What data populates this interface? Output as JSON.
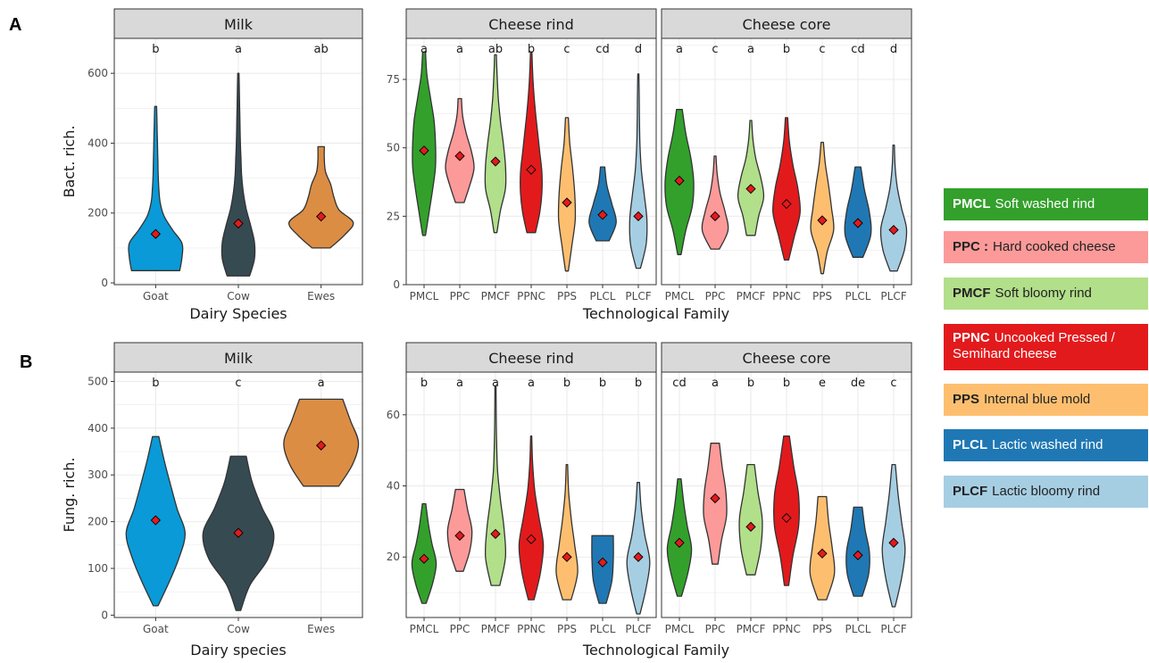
{
  "panel_labels": [
    "A",
    "B"
  ],
  "colors": {
    "Goat": "#0a9ad7",
    "Cow": "#364a52",
    "Ewes": "#dc8d44",
    "PMCL": "#33a02c",
    "PPC": "#fb9a99",
    "PMCF": "#b2df8a",
    "PPNC": "#e31a1c",
    "PPS": "#fdbf6f",
    "PLCL": "#1f78b4",
    "PLCF": "#a6cee3"
  },
  "legend": [
    {
      "code": "PMCL",
      "desc": "Soft washed rind",
      "color": "#33a02c",
      "text_color": "#ffffff"
    },
    {
      "code": "PPC :",
      "desc": "Hard cooked cheese",
      "color": "#fb9a99",
      "text_color": "#222222"
    },
    {
      "code": "PMCF",
      "desc": "Soft bloomy rind",
      "color": "#b2df8a",
      "text_color": "#222222"
    },
    {
      "code": "PPNC",
      "desc": "Uncooked Pressed / Semihard cheese",
      "color": "#e31a1c",
      "text_color": "#ffffff"
    },
    {
      "code": "PPS",
      "desc": "Internal blue mold",
      "color": "#fdbf6f",
      "text_color": "#222222"
    },
    {
      "code": "PLCL",
      "desc": " Lactic washed rind",
      "color": "#1f78b4",
      "text_color": "#ffffff"
    },
    {
      "code": "PLCF",
      "desc": " Lactic bloomy rind",
      "color": "#a6cee3",
      "text_color": "#222222"
    }
  ],
  "chart_data": [
    {
      "type": "violin",
      "row": "A",
      "panel": "Milk",
      "ylabel": "Bact. rich.",
      "xlabel": "Dairy Species",
      "ylim": [
        -5,
        700
      ],
      "yticks": [
        0,
        200,
        400,
        600
      ],
      "grid": true,
      "groups": [
        {
          "name": "Goat",
          "min": 35,
          "max": 505,
          "mean": 140,
          "letter": "b",
          "widths": [
            0.75,
            0.82,
            0.82,
            0.52,
            0.26,
            0.14,
            0.1,
            0.08,
            0.07,
            0.06,
            0.05,
            0.04,
            0.03
          ]
        },
        {
          "name": "Cow",
          "min": 20,
          "max": 600,
          "mean": 170,
          "letter": "a",
          "widths": [
            0.35,
            0.5,
            0.5,
            0.38,
            0.24,
            0.15,
            0.1,
            0.08,
            0.06,
            0.05,
            0.04,
            0.03,
            0.02
          ]
        },
        {
          "name": "Ewes",
          "min": 100,
          "max": 390,
          "mean": 190,
          "letter": "ab",
          "widths": [
            0.28,
            0.72,
            1.0,
            0.56,
            0.4,
            0.3,
            0.14,
            0.1,
            0.1
          ]
        }
      ]
    },
    {
      "type": "violin",
      "row": "A",
      "panel": "Cheese rind",
      "xlabel": "Technological Family",
      "ylim": [
        0,
        90
      ],
      "yticks": [
        0,
        25,
        50,
        75
      ],
      "grid": true,
      "groups": [
        {
          "name": "PMCL",
          "min": 18,
          "max": 85,
          "mean": 49,
          "letter": "a",
          "widths": [
            0.1,
            0.35,
            0.6,
            0.8,
            0.8,
            0.7,
            0.45,
            0.2,
            0.1
          ]
        },
        {
          "name": "PPC",
          "min": 30,
          "max": 68,
          "mean": 47,
          "letter": "a",
          "widths": [
            0.3,
            0.7,
            1.0,
            0.8,
            0.45,
            0.2,
            0.12
          ]
        },
        {
          "name": "PMCF",
          "min": 19,
          "max": 84,
          "mean": 45,
          "letter": "ab",
          "widths": [
            0.1,
            0.35,
            0.7,
            0.7,
            0.55,
            0.35,
            0.2,
            0.12,
            0.06
          ]
        },
        {
          "name": "PPNC",
          "min": 19,
          "max": 85,
          "mean": 42,
          "letter": "b",
          "widths": [
            0.3,
            0.6,
            0.75,
            0.75,
            0.6,
            0.45,
            0.3,
            0.18,
            0.1,
            0.05
          ]
        },
        {
          "name": "PPS",
          "min": 5,
          "max": 61,
          "mean": 30,
          "letter": "c",
          "widths": [
            0.1,
            0.35,
            0.58,
            0.55,
            0.4,
            0.2,
            0.1
          ]
        },
        {
          "name": "PLCL",
          "min": 16,
          "max": 43,
          "mean": 25.5,
          "letter": "cd",
          "widths": [
            0.45,
            0.95,
            0.65,
            0.3,
            0.15
          ]
        },
        {
          "name": "PLCF",
          "min": 6,
          "max": 77,
          "mean": 25,
          "letter": "d",
          "widths": [
            0.15,
            0.55,
            0.6,
            0.42,
            0.22,
            0.12,
            0.08,
            0.06,
            0.04
          ]
        }
      ]
    },
    {
      "type": "violin",
      "row": "A",
      "panel": "Cheese core",
      "ylim": [
        0,
        90
      ],
      "yticks": [
        0,
        25,
        50,
        75
      ],
      "grid": true,
      "groups": [
        {
          "name": "PMCL",
          "min": 11,
          "max": 64,
          "mean": 38,
          "letter": "a",
          "widths": [
            0.12,
            0.45,
            0.9,
            1.0,
            0.8,
            0.45,
            0.2
          ]
        },
        {
          "name": "PPC",
          "min": 13,
          "max": 47,
          "mean": 25,
          "letter": "c",
          "widths": [
            0.3,
            0.9,
            0.7,
            0.35,
            0.15,
            0.06
          ]
        },
        {
          "name": "PMCF",
          "min": 18,
          "max": 60,
          "mean": 35,
          "letter": "a",
          "widths": [
            0.3,
            0.55,
            0.9,
            0.7,
            0.35,
            0.15,
            0.06
          ]
        },
        {
          "name": "PPNC",
          "min": 9,
          "max": 61,
          "mean": 29.5,
          "letter": "b",
          "widths": [
            0.15,
            0.55,
            0.95,
            0.8,
            0.45,
            0.2,
            0.08
          ]
        },
        {
          "name": "PPS",
          "min": 4,
          "max": 52,
          "mean": 23.5,
          "letter": "c",
          "widths": [
            0.08,
            0.35,
            0.8,
            0.65,
            0.45,
            0.22,
            0.08
          ]
        },
        {
          "name": "PLCL",
          "min": 10,
          "max": 43,
          "mean": 22.5,
          "letter": "cd",
          "widths": [
            0.35,
            0.9,
            0.8,
            0.45,
            0.2
          ]
        },
        {
          "name": "PLCF",
          "min": 5,
          "max": 51,
          "mean": 20,
          "letter": "d",
          "widths": [
            0.25,
            0.75,
            0.9,
            0.55,
            0.25,
            0.1,
            0.05
          ]
        }
      ]
    },
    {
      "type": "violin",
      "row": "B",
      "panel": "Milk",
      "ylabel": "Fung. rich.",
      "xlabel": "Dairy species",
      "ylim": [
        -5,
        520
      ],
      "yticks": [
        0,
        100,
        200,
        300,
        400,
        500
      ],
      "grid": true,
      "groups": [
        {
          "name": "Goat",
          "min": 20,
          "max": 382,
          "mean": 203,
          "letter": "b",
          "widths": [
            0.06,
            0.35,
            0.6,
            0.75,
            0.55,
            0.38,
            0.22,
            0.08
          ]
        },
        {
          "name": "Cow",
          "min": 10,
          "max": 340,
          "mean": 176,
          "letter": "c",
          "widths": [
            0.06,
            0.3,
            0.75,
            0.9,
            0.6,
            0.35,
            0.2
          ]
        },
        {
          "name": "Ewes",
          "min": 276,
          "max": 462,
          "mean": 363,
          "letter": "a",
          "widths": [
            0.45,
            0.8,
            0.95,
            0.75,
            0.55
          ]
        }
      ]
    },
    {
      "type": "violin",
      "row": "B",
      "panel": "Cheese rind",
      "xlabel": "Technological Family",
      "ylim": [
        3,
        72
      ],
      "yticks": [
        20,
        40,
        60
      ],
      "grid": true,
      "groups": [
        {
          "name": "PMCL",
          "min": 7,
          "max": 35,
          "mean": 19.5,
          "letter": "b",
          "widths": [
            0.15,
            0.6,
            0.85,
            0.55,
            0.3,
            0.12
          ]
        },
        {
          "name": "PPC",
          "min": 16,
          "max": 39,
          "mean": 26,
          "letter": "a",
          "widths": [
            0.25,
            0.7,
            0.85,
            0.55,
            0.3
          ]
        },
        {
          "name": "PMCF",
          "min": 12,
          "max": 68,
          "mean": 26.5,
          "letter": "a",
          "widths": [
            0.3,
            0.7,
            0.6,
            0.35,
            0.15,
            0.08,
            0.05,
            0.04
          ]
        },
        {
          "name": "PPNC",
          "min": 8,
          "max": 54,
          "mean": 25,
          "letter": "a",
          "widths": [
            0.2,
            0.65,
            0.85,
            0.55,
            0.25,
            0.1,
            0.04
          ]
        },
        {
          "name": "PPS",
          "min": 8,
          "max": 46,
          "mean": 20,
          "letter": "b",
          "widths": [
            0.3,
            0.75,
            0.55,
            0.3,
            0.12,
            0.05
          ]
        },
        {
          "name": "PLCL",
          "min": 7,
          "max": 26,
          "mean": 18.5,
          "letter": "b",
          "widths": [
            0.25,
            0.65,
            0.75,
            0.75
          ]
        },
        {
          "name": "PLCF",
          "min": 4,
          "max": 41,
          "mean": 20,
          "letter": "b",
          "widths": [
            0.12,
            0.55,
            0.8,
            0.45,
            0.2,
            0.08
          ]
        }
      ]
    },
    {
      "type": "violin",
      "row": "B",
      "panel": "Cheese core",
      "ylim": [
        3,
        72
      ],
      "yticks": [
        20,
        40,
        60
      ],
      "grid": true,
      "groups": [
        {
          "name": "PMCL",
          "min": 9,
          "max": 42,
          "mean": 24,
          "letter": "cd",
          "widths": [
            0.15,
            0.6,
            0.85,
            0.55,
            0.3,
            0.12
          ]
        },
        {
          "name": "PPC",
          "min": 18,
          "max": 52,
          "mean": 36.5,
          "letter": "a",
          "widths": [
            0.2,
            0.45,
            0.8,
            0.75,
            0.5,
            0.3
          ]
        },
        {
          "name": "PMCF",
          "min": 15,
          "max": 46,
          "mean": 28.5,
          "letter": "b",
          "widths": [
            0.3,
            0.7,
            0.8,
            0.5,
            0.25
          ]
        },
        {
          "name": "PPNC",
          "min": 12,
          "max": 54,
          "mean": 31,
          "letter": "b",
          "widths": [
            0.15,
            0.45,
            0.85,
            0.85,
            0.5,
            0.2
          ]
        },
        {
          "name": "PPS",
          "min": 8,
          "max": 37,
          "mean": 21,
          "letter": "e",
          "widths": [
            0.3,
            0.85,
            0.7,
            0.45,
            0.3
          ]
        },
        {
          "name": "PLCL",
          "min": 9,
          "max": 34,
          "mean": 20.5,
          "letter": "de",
          "widths": [
            0.3,
            0.75,
            0.8,
            0.5,
            0.3
          ]
        },
        {
          "name": "PLCF",
          "min": 6,
          "max": 46,
          "mean": 24,
          "letter": "c",
          "widths": [
            0.1,
            0.55,
            0.8,
            0.55,
            0.3,
            0.12
          ]
        }
      ]
    }
  ]
}
